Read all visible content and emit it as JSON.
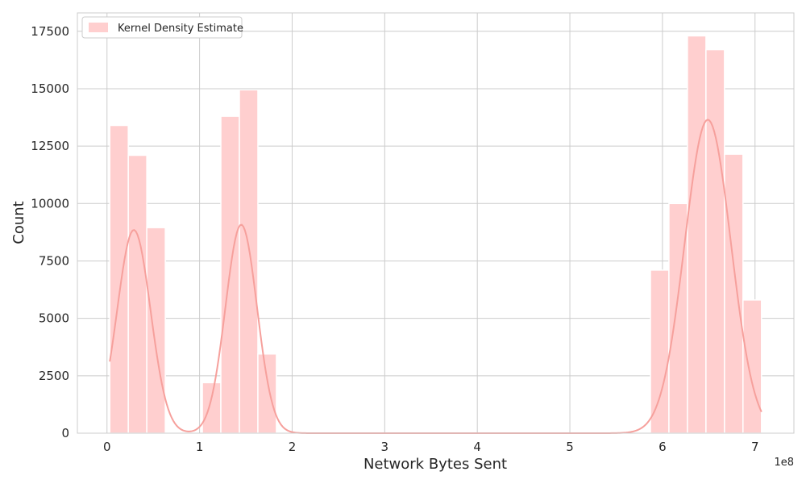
{
  "chart_data": {
    "type": "bar",
    "xlabel": "Network Bytes Sent",
    "ylabel": "Count",
    "x_offset_label": "1e8",
    "xlim": [
      -0.32,
      7.42
    ],
    "ylim": [
      0,
      18300
    ],
    "xticks": [
      0,
      1,
      2,
      3,
      4,
      5,
      6,
      7
    ],
    "xtick_labels": [
      "0",
      "1",
      "2",
      "3",
      "4",
      "5",
      "6",
      "7"
    ],
    "yticks": [
      0,
      2500,
      5000,
      7500,
      10000,
      12500,
      15000,
      17500
    ],
    "ytick_labels": [
      "0",
      "2500",
      "5000",
      "7500",
      "10000",
      "12500",
      "15000",
      "17500"
    ],
    "grid": true,
    "legend": {
      "position": "top-left",
      "entries": [
        "Kernel Density Estimate"
      ]
    },
    "colors": {
      "bar_fill": "#ffcfcf",
      "kde_line": "#f6a09c",
      "grid": "#cccccc",
      "axes_edge": "#cccccc"
    },
    "bin_width": 0.2,
    "bins": [
      {
        "x0": 0.03,
        "count": 13400
      },
      {
        "x0": 0.23,
        "count": 12100
      },
      {
        "x0": 0.43,
        "count": 8950
      },
      {
        "x0": 0.63,
        "count": 0
      },
      {
        "x0": 0.83,
        "count": 0
      },
      {
        "x0": 1.03,
        "count": 2200
      },
      {
        "x0": 1.23,
        "count": 13800
      },
      {
        "x0": 1.43,
        "count": 14950
      },
      {
        "x0": 1.63,
        "count": 3450
      },
      {
        "x0": 5.87,
        "count": 7100
      },
      {
        "x0": 6.07,
        "count": 10000
      },
      {
        "x0": 6.27,
        "count": 17300
      },
      {
        "x0": 6.47,
        "count": 16700
      },
      {
        "x0": 6.67,
        "count": 12150
      },
      {
        "x0": 6.87,
        "count": 5800
      }
    ],
    "kde": {
      "x_range": [
        0.03,
        7.07
      ],
      "components": [
        {
          "mean": 0.29,
          "sd": 0.18,
          "amp": 8850
        },
        {
          "mean": 1.45,
          "sd": 0.17,
          "amp": 9080
        },
        {
          "mean": 6.49,
          "sd": 0.25,
          "amp": 13650
        }
      ]
    }
  }
}
